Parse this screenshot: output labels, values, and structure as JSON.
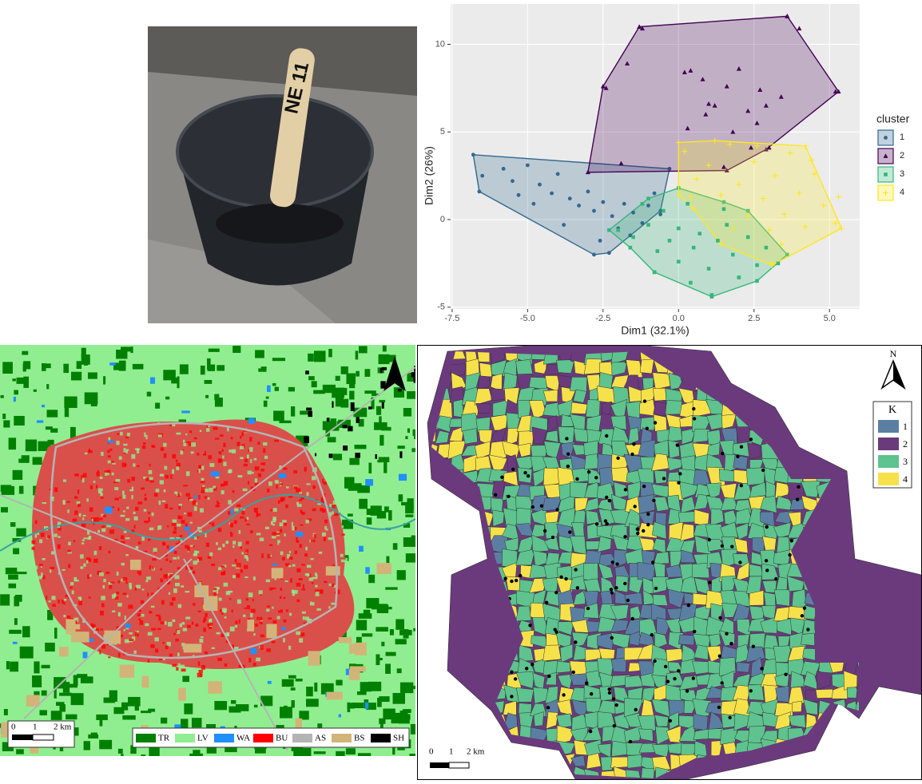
{
  "photo": {
    "stick_label": "NE 11"
  },
  "chart_data": {
    "type": "scatter",
    "x_label": "Dim1 (32.1%)",
    "y_label": "Dim2 (26%)",
    "xlim": [
      -7.55,
      6.0
    ],
    "ylim": [
      -5.1,
      12.3
    ],
    "xticks": [
      {
        "value": -7.5,
        "label": "-7.5"
      },
      {
        "value": -5,
        "label": "-5.0"
      },
      {
        "value": -2.5,
        "label": "-2.5"
      },
      {
        "value": 0,
        "label": "0.0"
      },
      {
        "value": 2.5,
        "label": "2.5"
      },
      {
        "value": 5,
        "label": "5.0"
      }
    ],
    "yticks": [
      -5,
      0,
      5,
      10
    ],
    "grid": true,
    "legend_title": "cluster",
    "legend_position": "right",
    "series": [
      {
        "name": "1",
        "color": "#31688e",
        "marker": "circle",
        "hull_x": [
          -6.8,
          -0.3,
          -0.6,
          -2.3,
          -2.8,
          -6.6
        ],
        "hull_y": [
          3.7,
          2.9,
          0.5,
          -1.9,
          -2.0,
          1.6
        ],
        "x": [
          -6.5,
          -5.8,
          -5.5,
          -5.0,
          -4.6,
          -4.2,
          -4.0,
          -3.6,
          -3.3,
          -3.0,
          -2.8,
          -2.5,
          -2.2,
          -2.0,
          -1.8,
          -1.5,
          -1.2,
          -1.0,
          -0.8,
          -0.6,
          -2.6,
          -3.8,
          -4.8,
          -1.6,
          -5.3
        ],
        "values": [
          2.5,
          2.9,
          2.2,
          3.1,
          2.0,
          1.5,
          2.6,
          1.2,
          0.8,
          1.6,
          0.5,
          1.0,
          0.2,
          -0.5,
          0.9,
          0.4,
          -0.2,
          0.8,
          1.5,
          0.3,
          -1.2,
          -0.3,
          0.9,
          -0.9,
          1.4
        ]
      },
      {
        "name": "2",
        "color": "#440154",
        "marker": "triangle",
        "hull_x": [
          -3.0,
          -2.5,
          -1.3,
          3.6,
          5.3,
          2.9,
          1.6
        ],
        "hull_y": [
          2.7,
          7.6,
          11.0,
          11.6,
          7.3,
          4.0,
          2.8
        ],
        "x": [
          -2.4,
          -1.7,
          -1.2,
          0.2,
          0.4,
          0.8,
          1.0,
          1.2,
          1.6,
          2.0,
          2.3,
          2.6,
          2.9,
          3.4,
          3.6,
          4.0,
          5.2,
          1.5,
          -1.9,
          0.3,
          1.8,
          2.4,
          3.0,
          0.9,
          2.7
        ],
        "values": [
          7.5,
          8.9,
          10.9,
          8.4,
          8.5,
          8.0,
          6.6,
          6.5,
          7.6,
          8.6,
          6.2,
          5.5,
          6.5,
          7.0,
          11.6,
          10.9,
          7.3,
          3.0,
          3.2,
          5.2,
          5.0,
          4.1,
          4.1,
          6.0,
          7.4
        ]
      },
      {
        "name": "3",
        "color": "#35b779",
        "marker": "square",
        "hull_x": [
          -2.3,
          -1.0,
          0.0,
          1.5,
          2.3,
          3.6,
          2.6,
          1.1,
          -0.8,
          -1.6
        ],
        "hull_y": [
          -0.6,
          1.2,
          1.8,
          1.0,
          0.5,
          -2.0,
          -3.5,
          -4.4,
          -3.0,
          -1.6
        ],
        "x": [
          -2.0,
          -1.5,
          -1.0,
          -0.7,
          -0.5,
          -0.3,
          0.0,
          0.0,
          0.3,
          0.5,
          0.7,
          1.0,
          1.1,
          1.3,
          1.6,
          1.8,
          2.0,
          2.3,
          2.6,
          2.9,
          3.3,
          -0.8,
          0.4,
          1.5,
          -1.2
        ],
        "values": [
          -0.6,
          -1.0,
          -0.3,
          -1.8,
          0.5,
          -1.2,
          -0.5,
          -2.4,
          0.9,
          -1.6,
          -0.8,
          -2.8,
          -4.3,
          -1.2,
          -0.3,
          -2.0,
          -3.3,
          -1.0,
          -2.6,
          -1.6,
          -2.5,
          -3.0,
          -3.6,
          0.6,
          0.9
        ]
      },
      {
        "name": "4",
        "color": "#fde725",
        "marker": "plus",
        "hull_x": [
          0.0,
          1.2,
          4.2,
          5.4,
          3.1,
          1.4,
          0.5,
          0.0
        ],
        "hull_y": [
          4.4,
          4.5,
          4.2,
          -0.5,
          -2.6,
          -1.4,
          0.6,
          1.4
        ],
        "x": [
          0.2,
          0.6,
          1.0,
          1.4,
          1.7,
          2.0,
          2.3,
          2.5,
          2.8,
          3.0,
          3.2,
          3.5,
          3.7,
          4.0,
          4.2,
          4.5,
          4.8,
          5.2,
          5.3,
          3.1,
          1.8,
          2.6,
          4.4,
          0.4,
          3.4
        ],
        "values": [
          3.9,
          2.3,
          3.1,
          1.4,
          4.3,
          2.0,
          0.2,
          3.3,
          1.2,
          -0.6,
          2.5,
          0.3,
          3.8,
          1.5,
          -0.4,
          2.6,
          0.8,
          -0.2,
          1.3,
          -2.5,
          -0.5,
          4.2,
          3.4,
          1.3,
          -1.4
        ]
      }
    ]
  },
  "land_cover_map": {
    "legend": [
      {
        "code": "TR",
        "color": "#008000"
      },
      {
        "code": "LV",
        "color": "#90ee90"
      },
      {
        "code": "WA",
        "color": "#1e90ff"
      },
      {
        "code": "BU",
        "color": "#ff0000"
      },
      {
        "code": "AS",
        "color": "#b4b4b4"
      },
      {
        "code": "BS",
        "color": "#d2b478"
      },
      {
        "code": "SH",
        "color": "#000000"
      }
    ],
    "scale_bar": [
      "0",
      "1",
      "2 km"
    ]
  },
  "cluster_map": {
    "north_label": "N",
    "legend_title": "K",
    "legend": [
      {
        "label": "1",
        "color": "#5b7fa3"
      },
      {
        "label": "2",
        "color": "#6b3a7d"
      },
      {
        "label": "3",
        "color": "#5ec38e"
      },
      {
        "label": "4",
        "color": "#f7e14b"
      }
    ],
    "scale_bar": [
      "0",
      "1",
      "2 km"
    ]
  }
}
